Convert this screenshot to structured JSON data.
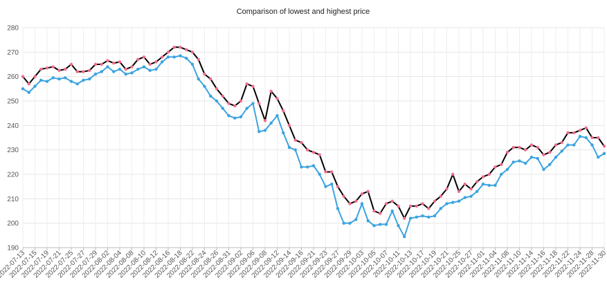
{
  "chart_data": {
    "type": "line",
    "title": "Comparison of lowest and highest price",
    "categories": [
      "2022-07-13",
      null,
      "2022-07-15",
      null,
      "2022-07-19",
      null,
      "2022-07-21",
      null,
      "2022-07-25",
      null,
      "2022-07-27",
      null,
      "2022-07-29",
      null,
      "2022-08-02",
      null,
      "2022-08-04",
      null,
      "2022-08-08",
      null,
      "2022-08-10",
      null,
      "2022-08-12",
      null,
      "2022-08-16",
      null,
      "2022-08-18",
      null,
      "2022-08-22",
      null,
      "2022-08-24",
      null,
      "2022-08-26",
      null,
      "2022-08-31",
      null,
      "2022-09-02",
      null,
      "2022-09-06",
      null,
      "2022-09-08",
      null,
      "2022-09-12",
      null,
      "2022-09-14",
      null,
      "2022-09-16",
      null,
      "2022-09-21",
      null,
      "2022-09-23",
      null,
      "2022-09-27",
      null,
      "2022-09-29",
      null,
      "2022-10-03",
      null,
      "2022-10-05",
      null,
      "2022-10-07",
      null,
      "2022-10-11",
      null,
      "2022-10-13",
      null,
      "2022-10-17",
      null,
      "2022-10-19",
      null,
      "2022-10-21",
      null,
      "2022-10-25",
      null,
      "2022-10-27",
      null,
      "2022-11-01",
      null,
      "2022-11-04",
      null,
      "2022-11-08",
      null,
      "2022-11-10",
      null,
      "2022-11-14",
      null,
      "2022-11-16",
      null,
      "2022-11-18",
      null,
      "2022-11-22",
      null,
      "2022-11-24",
      null,
      "2022-11-28",
      null,
      "2022-11-30"
    ],
    "series": [
      {
        "color": "#000000",
        "marker_color": "#f06b8a",
        "values": [
          260,
          257,
          260,
          263,
          263.5,
          264,
          262.5,
          263,
          265,
          262,
          262,
          262.5,
          265,
          265,
          266.5,
          265.5,
          266,
          263,
          264,
          267,
          268,
          265,
          266,
          268,
          270,
          272,
          272,
          271,
          270,
          267,
          261,
          259,
          255,
          252,
          249,
          248,
          250,
          257,
          256,
          249,
          242,
          254,
          251,
          246,
          240,
          234,
          233,
          230,
          229,
          228,
          221,
          221,
          215,
          211,
          208,
          209,
          212,
          213,
          205,
          204,
          208,
          209,
          207,
          202,
          207,
          207,
          208,
          206,
          209,
          211,
          214,
          220,
          213,
          216,
          214,
          217,
          219,
          220,
          223,
          224,
          229,
          231,
          231,
          230,
          232,
          231,
          228,
          229,
          232,
          233,
          237,
          237,
          238,
          239,
          235,
          235,
          231.5
        ]
      },
      {
        "color": "#3ba3e0",
        "marker_color": "#3ba3e0",
        "values": [
          255,
          253.5,
          256,
          258.5,
          258,
          259.5,
          259,
          259.5,
          258,
          257,
          258.5,
          259,
          261,
          262,
          264,
          262,
          263,
          261,
          261.5,
          263,
          264,
          262.5,
          263,
          266,
          268,
          268,
          268.5,
          267.5,
          265,
          259,
          256,
          252,
          250,
          247,
          244,
          243,
          243.5,
          247,
          249,
          237.5,
          238,
          241,
          244,
          237,
          231,
          230,
          223,
          223,
          223.5,
          220,
          215,
          216,
          206,
          200,
          200,
          201.5,
          208,
          201,
          199,
          199.5,
          199.5,
          205,
          199,
          194.5,
          202,
          202.5,
          203,
          202.5,
          203,
          206,
          208,
          208.5,
          209,
          210.5,
          211,
          213,
          216,
          215.5,
          215.5,
          220,
          222,
          225,
          225.5,
          224.5,
          227,
          226.5,
          222,
          224,
          227,
          229.5,
          232,
          232,
          235.5,
          235,
          232,
          227,
          228.5
        ]
      }
    ],
    "ylim": [
      190,
      280
    ],
    "yticks": [
      190,
      200,
      210,
      220,
      230,
      240,
      250,
      260,
      270,
      280
    ],
    "grid": true
  }
}
